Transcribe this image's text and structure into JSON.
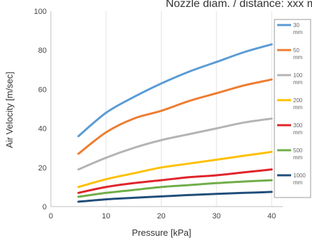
{
  "chart_data": {
    "type": "line",
    "title": "Nozzle diam. / distance: xxx mm",
    "xlabel": "Pressure [kPa]",
    "ylabel": "Air Velocity [m/sec]",
    "xlim": [
      0,
      42
    ],
    "ylim": [
      0,
      100
    ],
    "xticks": [
      0,
      10,
      20,
      30,
      40
    ],
    "yticks": [
      0,
      20,
      40,
      60,
      80,
      100
    ],
    "grid": "vertical",
    "legend_position": "right",
    "x": [
      5,
      10,
      15,
      20,
      25,
      30,
      35,
      40
    ],
    "series": [
      {
        "name": [
          "30",
          "mm"
        ],
        "color": "#5b9bd5",
        "values": [
          36,
          48,
          56,
          63,
          69,
          74,
          79,
          83
        ]
      },
      {
        "name": [
          "50",
          "mm"
        ],
        "color": "#ed7d31",
        "values": [
          27,
          38,
          45,
          49,
          54,
          58,
          62,
          65
        ]
      },
      {
        "name": [
          "100",
          "mm"
        ],
        "color": "#b4b4b4",
        "values": [
          19,
          25,
          30,
          34,
          37,
          40,
          43,
          45
        ]
      },
      {
        "name": [
          "200",
          "mm"
        ],
        "color": "#ffc000",
        "values": [
          10,
          14,
          17,
          20,
          22,
          24,
          26,
          28
        ]
      },
      {
        "name": [
          "300",
          "mm"
        ],
        "color": "#e0242a",
        "values": [
          7,
          10,
          12,
          13.5,
          15,
          16,
          17.5,
          19
        ]
      },
      {
        "name": [
          "500",
          "mm"
        ],
        "color": "#70ad47",
        "values": [
          5,
          7,
          8.5,
          10,
          11,
          12,
          12.8,
          13.5
        ]
      },
      {
        "name": [
          "1000",
          "mm"
        ],
        "color": "#1f4e79",
        "values": [
          2.5,
          3.7,
          4.5,
          5.2,
          5.9,
          6.5,
          7,
          7.5
        ]
      }
    ]
  }
}
